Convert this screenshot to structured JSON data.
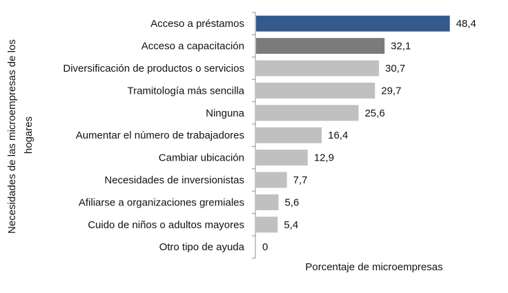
{
  "chart_data": {
    "type": "bar",
    "orientation": "horizontal",
    "title": "",
    "xlabel": "Porcentaje de microempresas",
    "ylabel": "Necesidades de las microempresas de los hogares",
    "ylabel_lines": [
      "Necesidades de las microempresas de los",
      "hogares"
    ],
    "categories": [
      "Acceso a préstamos",
      "Acceso a capacitación",
      "Diversificación de productos o servicios",
      "Tramitología más sencilla",
      "Ninguna",
      "Aumentar el número de trabajadores",
      "Cambiar ubicación",
      "Necesidades de inversionistas",
      "Afiliarse a organizaciones gremiales",
      "Cuido de niños o adultos mayores",
      "Otro tipo de ayuda"
    ],
    "values": [
      48.4,
      32.1,
      30.7,
      29.7,
      25.6,
      16.4,
      12.9,
      7.7,
      5.6,
      5.4,
      0
    ],
    "value_labels": [
      "48,4",
      "32,1",
      "30,7",
      "29,7",
      "25,6",
      "16,4",
      "12,9",
      "7,7",
      "5,6",
      "5,4",
      "0"
    ],
    "bar_colors": [
      "#335a8e",
      "#7b7b7b",
      "#c0c0c0",
      "#c0c0c0",
      "#c0c0c0",
      "#c0c0c0",
      "#c0c0c0",
      "#c0c0c0",
      "#c0c0c0",
      "#c0c0c0",
      "#c0c0c0"
    ],
    "xlim": [
      0,
      60
    ],
    "grid": false,
    "legend": "none"
  }
}
